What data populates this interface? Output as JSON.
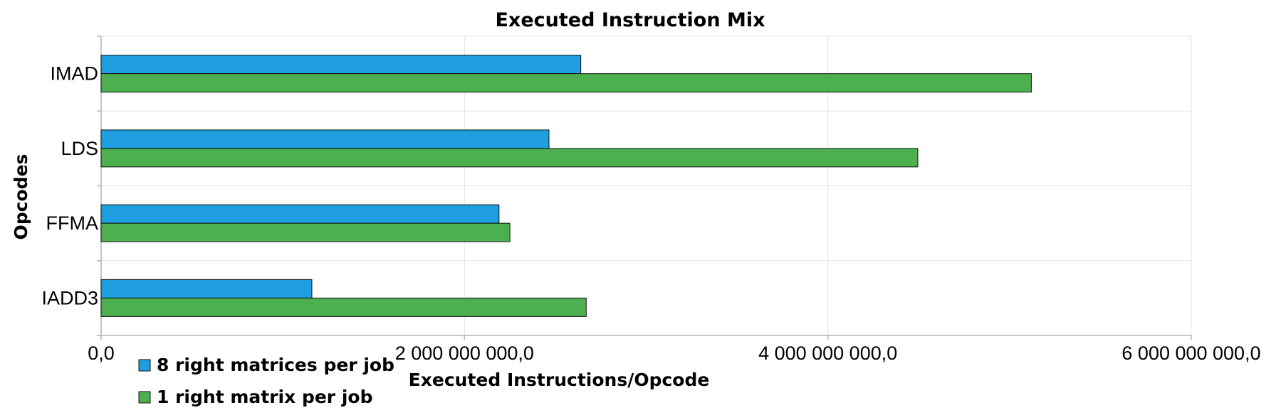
{
  "chart_data": {
    "type": "bar",
    "orientation": "horizontal",
    "title": "Executed Instruction Mix",
    "xlabel": "Executed Instructions/Opcode",
    "ylabel": "Opcodes",
    "categories": [
      "IMAD",
      "LDS",
      "FFMA",
      "IADD3"
    ],
    "series": [
      {
        "name": "8 right matrices per job",
        "color": "#1f9fe0",
        "values": [
          2640000000,
          2465000000,
          2190000000,
          1160000000
        ]
      },
      {
        "name": "1 right matrix per job",
        "color": "#4caf50",
        "values": [
          5120000000,
          4495000000,
          2250000000,
          2670000000
        ]
      }
    ],
    "xlim": [
      0,
      6000000000
    ],
    "xticks": [
      0,
      2000000000,
      4000000000,
      6000000000
    ],
    "xtick_labels": [
      "0,0",
      "2 000 000 000,0",
      "4 000 000 000,0",
      "6 000 000 000,0"
    ],
    "grid": true,
    "legend_position": "bottom-left"
  }
}
